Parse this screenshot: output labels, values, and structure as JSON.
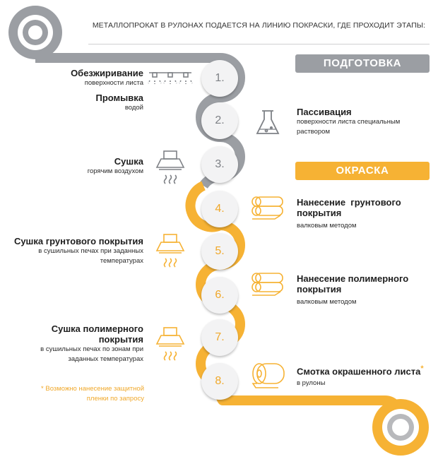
{
  "intro_text": "МЕТАЛЛОПРОКАТ В РУЛОНАХ ПОДАЕТСЯ НА ЛИНИЮ ПОКРАСКИ, ГДЕ ПРОХОДИТ ЭТАПЫ:",
  "phases": {
    "preparation": "ПОДГОТОВКА",
    "painting": "ОКРАСКА"
  },
  "steps": [
    {
      "number": "1.",
      "title": "Обезжиривание",
      "subtitle": "поверхности листа",
      "icon": "spray-nozzles-icon",
      "phase": "preparation"
    },
    {
      "number": "2.",
      "title": "Промывка",
      "subtitle": "водой",
      "phase": "preparation"
    },
    {
      "number": "2.",
      "title": "Пассивация",
      "subtitle": "поверхности листа специальным раствором",
      "icon": "flask-icon",
      "phase": "preparation"
    },
    {
      "number": "3.",
      "title": "Сушка",
      "subtitle": "горячим воздухом",
      "icon": "dryer-hood-icon",
      "phase": "preparation"
    },
    {
      "number": "4.",
      "title": "Нанесение  грунтового покрытия",
      "subtitle": "валковым методом",
      "icon": "rollers-icon",
      "phase": "painting"
    },
    {
      "number": "5.",
      "title": "Сушка грунтового покрытия",
      "subtitle": "в сушильных печах при заданных температурах",
      "icon": "dryer-hood-icon",
      "phase": "painting"
    },
    {
      "number": "6.",
      "title": "Нанесение полимерного покрытия",
      "subtitle": "валковым методом",
      "icon": "rollers-icon",
      "phase": "painting"
    },
    {
      "number": "7.",
      "title": "Сушка полимерного покрытия",
      "subtitle": "в сушильных печах по зонам при заданных температурах",
      "icon": "dryer-hood-icon",
      "phase": "painting"
    },
    {
      "number": "8.",
      "title": "Смотка окрашенного листа",
      "subtitle": "в рулоны",
      "icon": "coil-roll-icon",
      "phase": "painting"
    }
  ],
  "display": {
    "n1": "1.",
    "n2": "2.",
    "n3": "3.",
    "n4": "4.",
    "n5": "5.",
    "n6": "6.",
    "n7": "7.",
    "n8": "8.",
    "degrease_title": "Обезжиривание",
    "degrease_sub": "поверхности листа",
    "rinse_title": "Промывка",
    "rinse_sub": "водой",
    "passiv_title": "Пассивация",
    "passiv_sub1": "поверхности листа специальным",
    "passiv_sub2": "раствором",
    "dry_title": "Сушка",
    "dry_sub": "горячим воздухом",
    "primer_title1": "Нанесение  грунтового",
    "primer_title2": "покрытия",
    "primer_sub": "валковым методом",
    "primerdry_title": "Сушка грунтового покрытия",
    "primerdry_sub1": "в сушильных печах при заданных",
    "primerdry_sub2": "температурах",
    "polymer_title1": "Нанесение полимерного",
    "polymer_title2": "покрытия",
    "polymer_sub": "валковым методом",
    "polydry_title1": "Сушка полимерного",
    "polydry_title2": "покрытия",
    "polydry_sub1": "в сушильных печах по зонам при",
    "polydry_sub2": "заданных температурах",
    "coil_title": "Смотка окрашенного листа",
    "coil_sub": "в рулоны"
  },
  "footnote": {
    "mark": "*",
    "line1": "Возможно нанесение защитной",
    "line2": "пленки по запросу"
  },
  "colors": {
    "preparation": "#9b9ea3",
    "painting": "#f6b234",
    "number_text": "#7e8186",
    "number_bg": "#f3f3f4"
  }
}
